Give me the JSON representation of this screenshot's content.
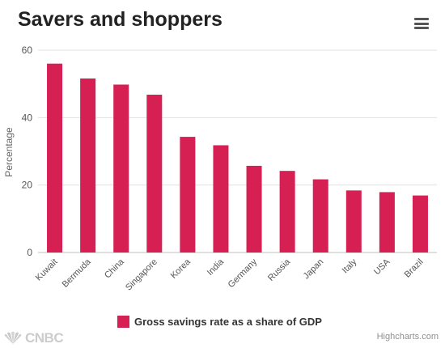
{
  "header": {
    "title": "Savers and shoppers"
  },
  "menu": {
    "icon": "hamburger-menu-icon"
  },
  "colors": {
    "bar": "#d61f52",
    "grid": "#e0e0e0",
    "axis_text": "#555555"
  },
  "chart_data": {
    "type": "bar",
    "title": "Savers and shoppers",
    "xlabel": "",
    "ylabel": "Percentage",
    "ylim": [
      0,
      60
    ],
    "yticks": [
      0,
      20,
      40,
      60
    ],
    "grid": true,
    "legend_position": "bottom-center",
    "categories": [
      "Kuwait",
      "Bermuda",
      "China",
      "Singapore",
      "Korea",
      "India",
      "Germany",
      "Russia",
      "Japan",
      "Italy",
      "USA",
      "Brazil"
    ],
    "series": [
      {
        "name": "Gross savings rate as a share of GDP",
        "values": [
          56,
          51.6,
          49.8,
          46.8,
          34.3,
          31.8,
          25.7,
          24.2,
          21.7,
          18.4,
          17.9,
          16.9
        ]
      }
    ]
  },
  "footer": {
    "logo_text": "CNBC",
    "logo_icon": "nbc-peacock-icon",
    "credits": "Highcharts.com"
  }
}
